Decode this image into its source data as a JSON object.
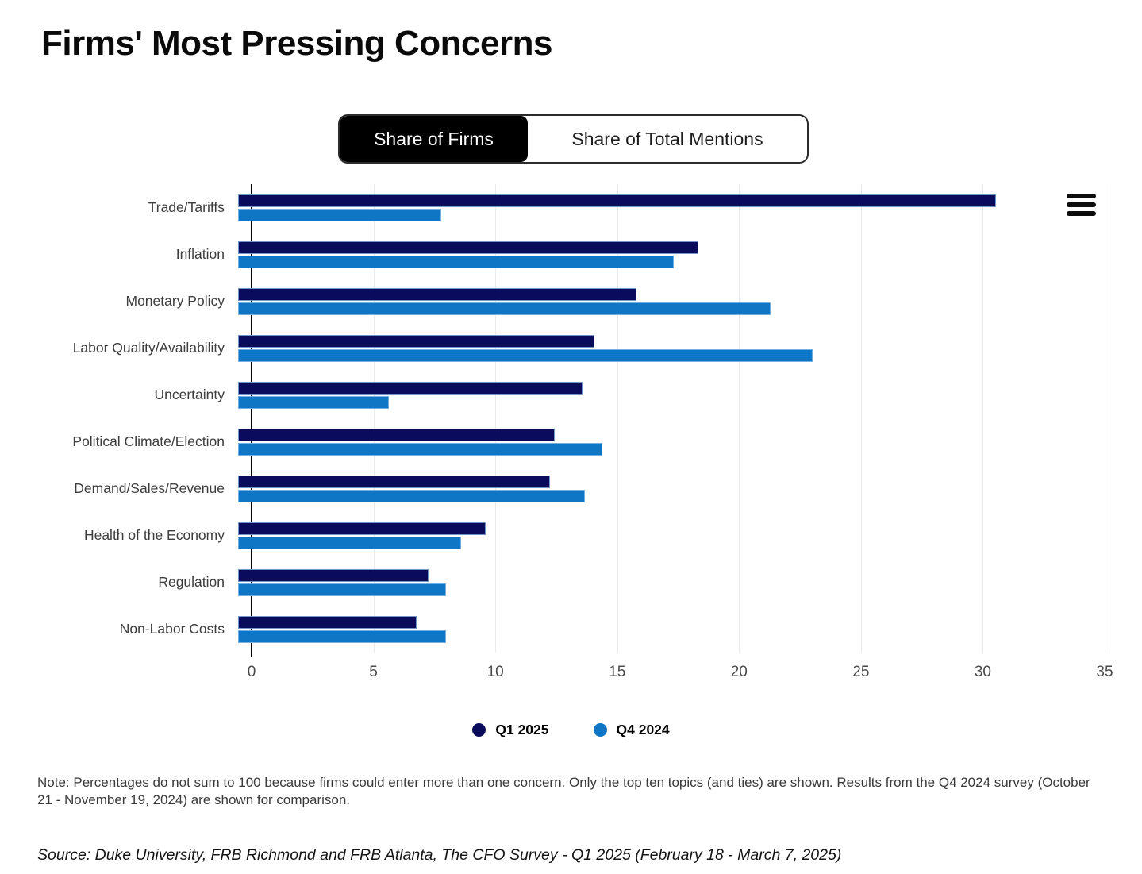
{
  "title": "Firms' Most Pressing Concerns",
  "toggle": {
    "options": [
      {
        "label": "Share of Firms",
        "active": true
      },
      {
        "label": "Share of Total Mentions",
        "active": false
      }
    ]
  },
  "icons": {
    "menu": "hamburger-menu-icon"
  },
  "colors": {
    "q1_2025": "#0b0b5c",
    "q4_2024": "#0e76c5",
    "grid": "#e9e9ee",
    "axis": "#000000"
  },
  "chart_data": {
    "type": "bar",
    "orientation": "horizontal",
    "title": "Firms' Most Pressing Concerns",
    "categories": [
      "Trade/Tariffs",
      "Inflation",
      "Monetary Policy",
      "Labor Quality/Availability",
      "Uncertainty",
      "Political Climate/Election",
      "Demand/Sales/Revenue",
      "Health of the Economy",
      "Regulation",
      "Non-Labor Costs"
    ],
    "series": [
      {
        "name": "Q1 2025",
        "color": "#0b0b5c",
        "values": [
          30.6,
          18.6,
          16.1,
          14.4,
          13.9,
          12.8,
          12.6,
          10.0,
          7.7,
          7.2
        ]
      },
      {
        "name": "Q4 2024",
        "color": "#0e76c5",
        "values": [
          8.2,
          17.6,
          21.5,
          23.2,
          6.1,
          14.7,
          14.0,
          9.0,
          8.4,
          8.4
        ]
      }
    ],
    "xlim": [
      0,
      35
    ],
    "x_ticks": [
      0,
      5,
      10,
      15,
      20,
      25,
      30,
      35
    ],
    "grid": "vertical",
    "legend_position": "bottom"
  },
  "note": "Note: Percentages do not sum to 100 because firms could enter more than one concern. Only the top ten topics (and ties) are shown.  Results from the Q4 2024 survey (October 21 - November 19, 2024) are shown for comparison.",
  "source": "Source: Duke University, FRB Richmond and FRB Atlanta, The CFO Survey - Q1 2025 (February 18 - March 7, 2025)"
}
